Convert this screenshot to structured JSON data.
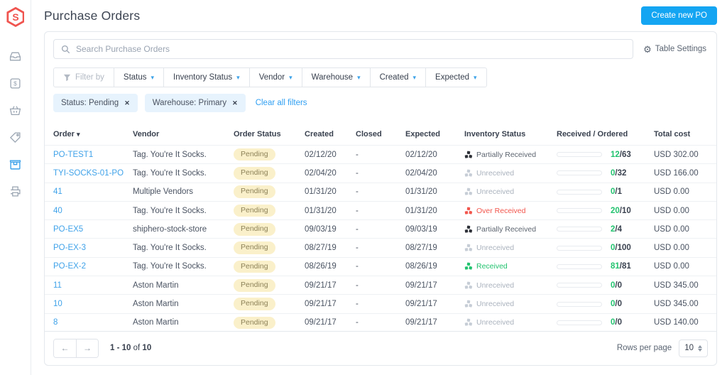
{
  "app": {
    "colors": {
      "accent_blue": "#14a5f2",
      "link_blue": "#3fa2e9",
      "green": "#22c36f",
      "red": "#f2564d",
      "badge_bg": "#faf0ca",
      "logo_red": "#f0544f"
    }
  },
  "header": {
    "title": "Purchase Orders",
    "create_button": "Create new PO"
  },
  "sidebar": {
    "items": [
      {
        "icon": "inbox-icon",
        "active": false
      },
      {
        "icon": "dollar-icon",
        "active": false
      },
      {
        "icon": "basket-icon",
        "active": false
      },
      {
        "icon": "tag-icon",
        "active": false
      },
      {
        "icon": "package-icon",
        "active": true
      },
      {
        "icon": "printer-icon",
        "active": false
      }
    ]
  },
  "toolbar": {
    "search_placeholder": "Search Purchase Orders",
    "table_settings_label": "Table Settings"
  },
  "filters": {
    "filter_by_label": "Filter by",
    "dropdowns": [
      "Status",
      "Inventory Status",
      "Vendor",
      "Warehouse",
      "Created",
      "Expected"
    ],
    "chips": [
      "Status: Pending",
      "Warehouse: Primary"
    ],
    "clear_all_label": "Clear all filters"
  },
  "table": {
    "columns": [
      "Order",
      "Vendor",
      "Order Status",
      "Created",
      "Closed",
      "Expected",
      "Inventory Status",
      "Received / Ordered",
      "Total cost"
    ],
    "rows": [
      {
        "order": "PO-TEST1",
        "vendor": "Tag. You're It Socks.",
        "status": "Pending",
        "created": "02/12/20",
        "closed": "-",
        "expected": "02/12/20",
        "inventory_status": "Partially Received",
        "inventory_state": "partial",
        "received": 12,
        "ordered": 63,
        "total": "USD 302.00"
      },
      {
        "order": "TYI-SOCKS-01-PO",
        "vendor": "Tag. You're It Socks.",
        "status": "Pending",
        "created": "02/04/20",
        "closed": "-",
        "expected": "02/04/20",
        "inventory_status": "Unreceived",
        "inventory_state": "unreceived",
        "received": 0,
        "ordered": 32,
        "total": "USD 166.00"
      },
      {
        "order": "41",
        "vendor": "Multiple Vendors",
        "status": "Pending",
        "created": "01/31/20",
        "closed": "-",
        "expected": "01/31/20",
        "inventory_status": "Unreceived",
        "inventory_state": "unreceived",
        "received": 0,
        "ordered": 1,
        "total": "USD 0.00"
      },
      {
        "order": "40",
        "vendor": "Tag. You're It Socks.",
        "status": "Pending",
        "created": "01/31/20",
        "closed": "-",
        "expected": "01/31/20",
        "inventory_status": "Over Received",
        "inventory_state": "over",
        "received": 20,
        "ordered": 10,
        "total": "USD 0.00"
      },
      {
        "order": "PO-EX5",
        "vendor": "shiphero-stock-store",
        "status": "Pending",
        "created": "09/03/19",
        "closed": "-",
        "expected": "09/03/19",
        "inventory_status": "Partially Received",
        "inventory_state": "partial",
        "received": 2,
        "ordered": 4,
        "total": "USD 0.00"
      },
      {
        "order": "PO-EX-3",
        "vendor": "Tag. You're It Socks.",
        "status": "Pending",
        "created": "08/27/19",
        "closed": "-",
        "expected": "08/27/19",
        "inventory_status": "Unreceived",
        "inventory_state": "unreceived",
        "received": 0,
        "ordered": 100,
        "total": "USD 0.00"
      },
      {
        "order": "PO-EX-2",
        "vendor": "Tag. You're It Socks.",
        "status": "Pending",
        "created": "08/26/19",
        "closed": "-",
        "expected": "08/26/19",
        "inventory_status": "Received",
        "inventory_state": "received",
        "received": 81,
        "ordered": 81,
        "total": "USD 0.00"
      },
      {
        "order": "11",
        "vendor": "Aston Martin",
        "status": "Pending",
        "created": "09/21/17",
        "closed": "-",
        "expected": "09/21/17",
        "inventory_status": "Unreceived",
        "inventory_state": "unreceived",
        "received": 0,
        "ordered": 0,
        "total": "USD 345.00"
      },
      {
        "order": "10",
        "vendor": "Aston Martin",
        "status": "Pending",
        "created": "09/21/17",
        "closed": "-",
        "expected": "09/21/17",
        "inventory_status": "Unreceived",
        "inventory_state": "unreceived",
        "received": 0,
        "ordered": 0,
        "total": "USD 345.00"
      },
      {
        "order": "8",
        "vendor": "Aston Martin",
        "status": "Pending",
        "created": "09/21/17",
        "closed": "-",
        "expected": "09/21/17",
        "inventory_status": "Unreceived",
        "inventory_state": "unreceived",
        "received": 0,
        "ordered": 0,
        "total": "USD 140.00"
      }
    ]
  },
  "footer": {
    "range": "1 - 10",
    "of_label": "of",
    "total": "10",
    "rows_per_page_label": "Rows per page",
    "rows_per_page_value": "10"
  }
}
